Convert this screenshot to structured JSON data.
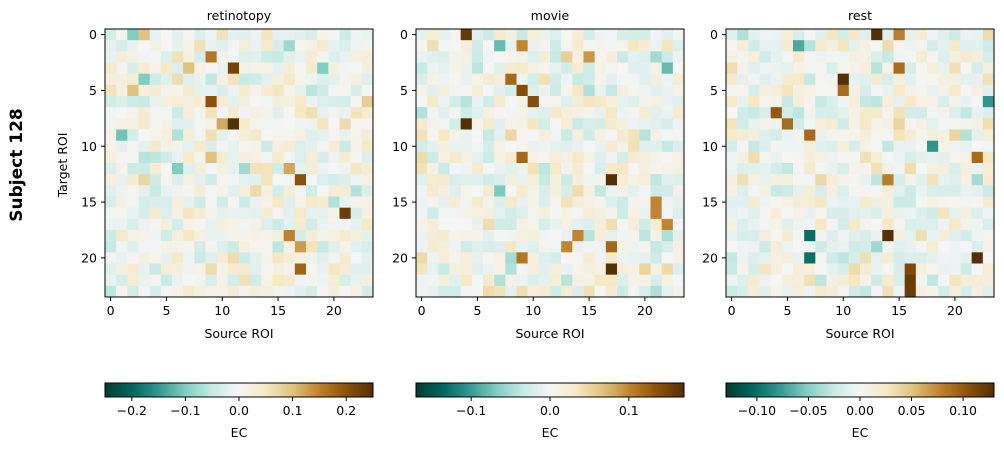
{
  "figure": {
    "row_label": "Subject 128",
    "ylabel": "Target ROI"
  },
  "chart_data": [
    {
      "type": "heatmap",
      "title": "retinotopy",
      "xlabel": "Source ROI",
      "ylabel": "Target ROI",
      "n": 24,
      "xticks": [
        0,
        5,
        10,
        15,
        20
      ],
      "yticks": [
        0,
        5,
        10,
        15,
        20
      ],
      "colormap": "BrBG_r",
      "vlim": [
        -0.25,
        0.25
      ],
      "colorbar": {
        "label": "EC",
        "ticks": [
          -0.2,
          -0.1,
          0.0,
          0.1,
          0.2
        ],
        "tick_labels": [
          "−0.2",
          "−0.1",
          "0.0",
          "0.1",
          "0.2"
        ]
      },
      "seed": 11,
      "strong": [
        [
          3,
          11,
          0.22
        ],
        [
          8,
          11,
          0.25
        ],
        [
          6,
          9,
          0.2
        ],
        [
          2,
          9,
          0.16
        ],
        [
          13,
          17,
          0.2
        ],
        [
          18,
          16,
          0.15
        ],
        [
          19,
          17,
          0.13
        ],
        [
          21,
          17,
          0.18
        ],
        [
          16,
          21,
          0.23
        ],
        [
          12,
          16,
          0.12
        ],
        [
          8,
          10,
          0.12
        ],
        [
          11,
          9,
          0.1
        ],
        [
          0,
          3,
          0.1
        ],
        [
          5,
          2,
          0.1
        ],
        [
          3,
          7,
          0.1
        ],
        [
          4,
          3,
          -0.1
        ],
        [
          0,
          2,
          -0.1
        ],
        [
          9,
          1,
          -0.11
        ],
        [
          12,
          6,
          -0.1
        ],
        [
          3,
          19,
          -0.1
        ]
      ]
    },
    {
      "type": "heatmap",
      "title": "movie",
      "xlabel": "Source ROI",
      "ylabel": "",
      "n": 24,
      "xticks": [
        0,
        5,
        10,
        15,
        20
      ],
      "yticks": [
        0,
        5,
        10,
        15,
        20
      ],
      "colormap": "BrBG_r",
      "vlim": [
        -0.17,
        0.17
      ],
      "colorbar": {
        "label": "EC",
        "ticks": [
          -0.1,
          0.0,
          0.1
        ],
        "tick_labels": [
          "−0.1",
          "0.0",
          "0.1"
        ]
      },
      "seed": 23,
      "strong": [
        [
          0,
          4,
          0.16
        ],
        [
          8,
          4,
          0.17
        ],
        [
          13,
          17,
          0.17
        ],
        [
          21,
          17,
          0.17
        ],
        [
          5,
          9,
          0.14
        ],
        [
          6,
          10,
          0.14
        ],
        [
          4,
          8,
          0.12
        ],
        [
          11,
          9,
          0.12
        ],
        [
          19,
          17,
          0.12
        ],
        [
          20,
          9,
          0.11
        ],
        [
          1,
          9,
          0.1
        ],
        [
          19,
          13,
          0.1
        ],
        [
          18,
          14,
          0.1
        ],
        [
          15,
          21,
          0.1
        ],
        [
          16,
          21,
          0.1
        ],
        [
          17,
          22,
          0.1
        ],
        [
          2,
          15,
          0.09
        ],
        [
          1,
          7,
          -0.08
        ],
        [
          14,
          7,
          -0.07
        ],
        [
          3,
          22,
          -0.08
        ]
      ]
    },
    {
      "type": "heatmap",
      "title": "rest",
      "xlabel": "Source ROI",
      "ylabel": "",
      "n": 24,
      "xticks": [
        0,
        5,
        10,
        15,
        20
      ],
      "yticks": [
        0,
        5,
        10,
        15,
        20
      ],
      "colormap": "BrBG_r",
      "vlim": [
        -0.13,
        0.13
      ],
      "colorbar": {
        "label": "EC",
        "ticks": [
          -0.1,
          -0.05,
          0.0,
          0.05,
          0.1
        ],
        "tick_labels": [
          "−0.10",
          "−0.05",
          "0.00",
          "0.05",
          "0.10"
        ]
      },
      "seed": 37,
      "strong": [
        [
          0,
          13,
          0.13
        ],
        [
          4,
          10,
          0.13
        ],
        [
          5,
          10,
          0.09
        ],
        [
          7,
          4,
          0.1
        ],
        [
          8,
          5,
          0.09
        ],
        [
          9,
          7,
          0.09
        ],
        [
          18,
          14,
          0.13
        ],
        [
          20,
          22,
          0.13
        ],
        [
          22,
          16,
          0.12
        ],
        [
          23,
          16,
          0.12
        ],
        [
          21,
          16,
          0.11
        ],
        [
          3,
          15,
          0.09
        ],
        [
          13,
          14,
          0.08
        ],
        [
          11,
          22,
          0.09
        ],
        [
          0,
          15,
          0.08
        ],
        [
          18,
          7,
          -0.1
        ],
        [
          20,
          7,
          -0.1
        ],
        [
          10,
          18,
          -0.08
        ],
        [
          6,
          23,
          -0.08
        ],
        [
          1,
          6,
          -0.07
        ]
      ]
    }
  ]
}
